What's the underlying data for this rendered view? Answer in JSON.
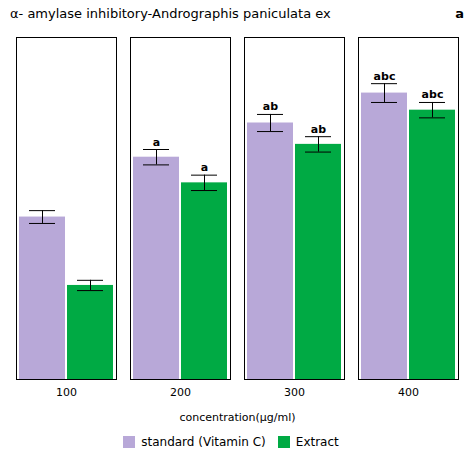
{
  "chart_data": {
    "type": "bar",
    "title": "α- amylase inhibitory-Andrographis paniculata ex",
    "annotations": [
      "a"
    ],
    "xlabel": "concentration(µg/ml)",
    "categories": [
      100,
      200,
      300,
      400
    ],
    "series": [
      {
        "name": "standard (Vitamin C)",
        "color": "#b8a8d8",
        "values": [
          38,
          52,
          60,
          67
        ],
        "errors": [
          1.5,
          1.8,
          2.0,
          2.2
        ],
        "annotations": [
          null,
          "a",
          "ab",
          "abc"
        ]
      },
      {
        "name": "Extract",
        "color": "#00aa44",
        "values": [
          22,
          46,
          55,
          63
        ],
        "errors": [
          1.2,
          1.8,
          1.8,
          1.8
        ],
        "annotations": [
          null,
          "a",
          "ab",
          "abc"
        ]
      }
    ],
    "ylim": [
      0,
      80
    ],
    "yticks": [],
    "tick_labels": "x",
    "grid": false,
    "legend": "bottom"
  }
}
